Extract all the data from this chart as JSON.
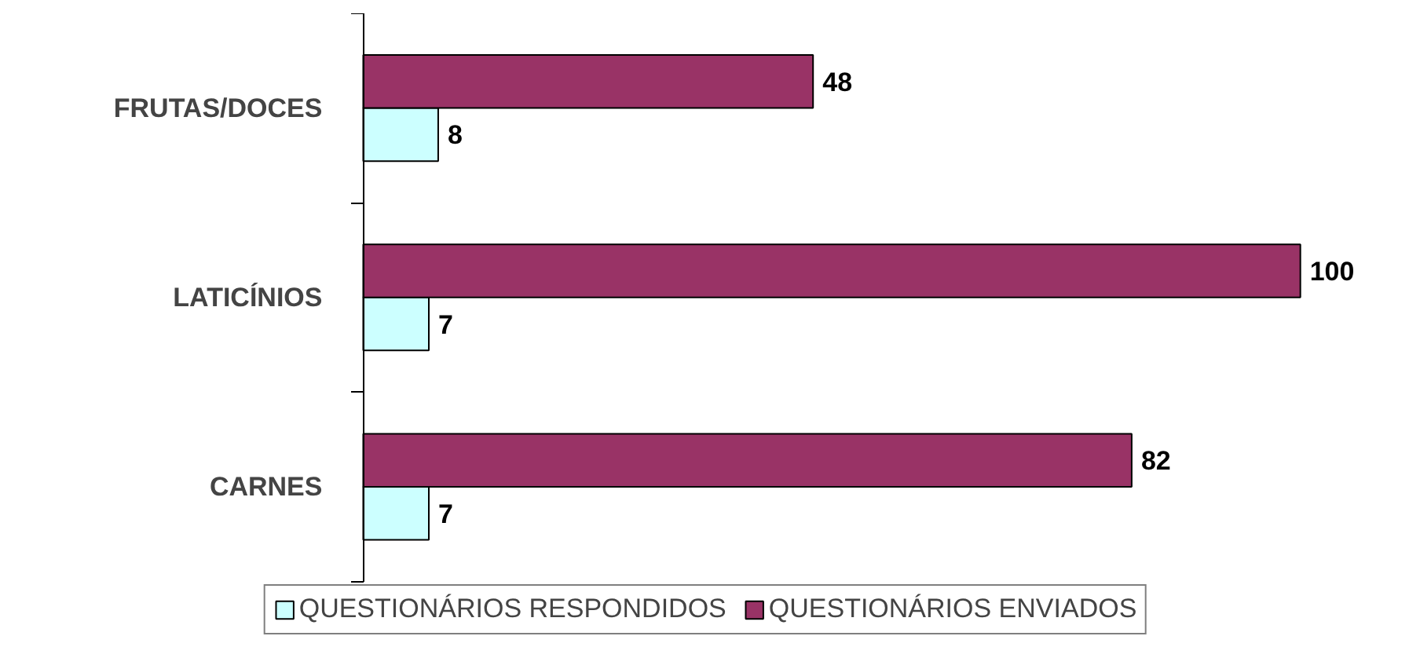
{
  "chart_data": {
    "type": "bar",
    "orientation": "horizontal",
    "categories": [
      "FRUTAS/DOCES",
      "LATICÍNIOS",
      "CARNES"
    ],
    "series": [
      {
        "name": "QUESTIONÁRIOS RESPONDIDOS",
        "color": "#ccffff",
        "values": [
          8,
          7,
          7
        ]
      },
      {
        "name": "QUESTIONÁRIOS ENVIADOS",
        "color": "#993366",
        "values": [
          48,
          100,
          82
        ]
      }
    ],
    "data_labels": true,
    "legend": "bottom",
    "grid": false
  }
}
